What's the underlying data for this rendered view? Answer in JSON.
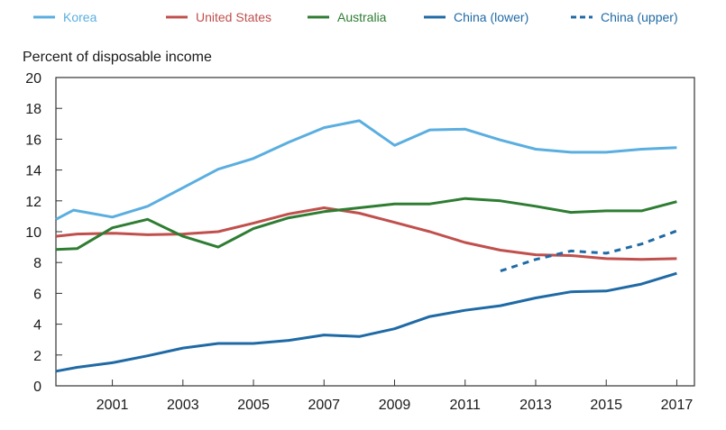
{
  "chart_data": {
    "type": "line",
    "ylabel": "Percent of disposable income",
    "xlabel": "",
    "title": "",
    "xlim": [
      1999.4,
      2017.5
    ],
    "ylim": [
      0,
      20
    ],
    "x_ticks": [
      2001,
      2003,
      2005,
      2007,
      2009,
      2011,
      2013,
      2015,
      2017
    ],
    "y_ticks": [
      0,
      2,
      4,
      6,
      8,
      10,
      12,
      14,
      16,
      18,
      20
    ],
    "grid": false,
    "legend_position": "top",
    "series": [
      {
        "name": "Korea",
        "color": "#5aaee0",
        "style": "solid",
        "points": [
          [
            1999.4,
            10.8
          ],
          [
            1999.9,
            11.4
          ],
          [
            2001,
            10.95
          ],
          [
            2002,
            11.65
          ],
          [
            2003,
            12.85
          ],
          [
            2004,
            14.05
          ],
          [
            2005,
            14.75
          ],
          [
            2006,
            15.8
          ],
          [
            2007,
            16.75
          ],
          [
            2008,
            17.2
          ],
          [
            2009,
            15.6
          ],
          [
            2010,
            16.6
          ],
          [
            2011,
            16.65
          ],
          [
            2012,
            15.95
          ],
          [
            2013,
            15.35
          ],
          [
            2014,
            15.15
          ],
          [
            2015,
            15.15
          ],
          [
            2016,
            15.35
          ],
          [
            2017,
            15.45
          ]
        ]
      },
      {
        "name": "United States",
        "color": "#c0504d",
        "style": "solid",
        "points": [
          [
            1999.4,
            9.7
          ],
          [
            2000,
            9.85
          ],
          [
            2001,
            9.9
          ],
          [
            2002,
            9.8
          ],
          [
            2003,
            9.85
          ],
          [
            2004,
            10.0
          ],
          [
            2005,
            10.55
          ],
          [
            2006,
            11.15
          ],
          [
            2007,
            11.55
          ],
          [
            2008,
            11.2
          ],
          [
            2009,
            10.6
          ],
          [
            2010,
            10.0
          ],
          [
            2011,
            9.3
          ],
          [
            2012,
            8.8
          ],
          [
            2013,
            8.5
          ],
          [
            2014,
            8.45
          ],
          [
            2015,
            8.25
          ],
          [
            2016,
            8.2
          ],
          [
            2017,
            8.25
          ]
        ]
      },
      {
        "name": "Australia",
        "color": "#2e7d32",
        "style": "solid",
        "points": [
          [
            1999.4,
            8.85
          ],
          [
            2000,
            8.9
          ],
          [
            2001,
            10.25
          ],
          [
            2002,
            10.8
          ],
          [
            2003,
            9.7
          ],
          [
            2004,
            9.0
          ],
          [
            2005,
            10.2
          ],
          [
            2006,
            10.9
          ],
          [
            2007,
            11.3
          ],
          [
            2008,
            11.55
          ],
          [
            2009,
            11.8
          ],
          [
            2010,
            11.8
          ],
          [
            2011,
            12.15
          ],
          [
            2012,
            12.0
          ],
          [
            2013,
            11.65
          ],
          [
            2014,
            11.25
          ],
          [
            2015,
            11.35
          ],
          [
            2016,
            11.35
          ],
          [
            2017,
            11.95
          ]
        ]
      },
      {
        "name": "China (lower)",
        "color": "#1f6aa5",
        "style": "solid",
        "points": [
          [
            1999.4,
            0.95
          ],
          [
            2000,
            1.2
          ],
          [
            2001,
            1.5
          ],
          [
            2002,
            1.95
          ],
          [
            2003,
            2.45
          ],
          [
            2004,
            2.75
          ],
          [
            2005,
            2.75
          ],
          [
            2006,
            2.95
          ],
          [
            2007,
            3.3
          ],
          [
            2008,
            3.2
          ],
          [
            2009,
            3.7
          ],
          [
            2010,
            4.5
          ],
          [
            2011,
            4.9
          ],
          [
            2012,
            5.2
          ],
          [
            2013,
            5.7
          ],
          [
            2014,
            6.1
          ],
          [
            2015,
            6.15
          ],
          [
            2016,
            6.6
          ],
          [
            2017,
            7.3
          ]
        ]
      },
      {
        "name": "China (upper)",
        "color": "#1f6aa5",
        "style": "dashed",
        "points": [
          [
            2012,
            7.45
          ],
          [
            2013,
            8.2
          ],
          [
            2014,
            8.75
          ],
          [
            2015,
            8.6
          ],
          [
            2016,
            9.2
          ],
          [
            2017,
            10.05
          ]
        ]
      }
    ]
  }
}
